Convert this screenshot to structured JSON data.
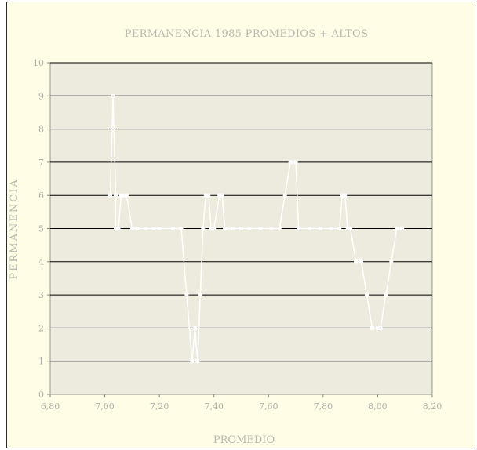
{
  "chart_data": {
    "type": "line",
    "title": "PERMANENCIA 1985 PROMEDIOS + ALTOS",
    "xlabel": "PROMEDIO",
    "ylabel": "PERMANENCIA",
    "xlim": [
      6.8,
      8.2
    ],
    "ylim": [
      0,
      10
    ],
    "x_ticks": [
      "6,80",
      "7,00",
      "7,20",
      "7,40",
      "7,60",
      "7,80",
      "8,00",
      "8,20"
    ],
    "y_ticks": [
      "0",
      "1",
      "2",
      "3",
      "4",
      "5",
      "6",
      "7",
      "8",
      "9",
      "10"
    ],
    "grid": "horizontal",
    "colors": {
      "frame_bg": "#fffde6",
      "plot_bg": "#ecebdd",
      "grid": "#000000",
      "line": "#ffffff",
      "text": "#b8b8b0"
    },
    "series": [
      {
        "points": [
          {
            "x": 7.02,
            "y": 6
          },
          {
            "x": 7.03,
            "y": 9
          },
          {
            "x": 7.04,
            "y": 6
          },
          {
            "x": 7.04,
            "y": 5
          },
          {
            "x": 7.05,
            "y": 5
          },
          {
            "x": 7.06,
            "y": 6
          },
          {
            "x": 7.07,
            "y": 6
          },
          {
            "x": 7.08,
            "y": 6
          },
          {
            "x": 7.1,
            "y": 5
          },
          {
            "x": 7.12,
            "y": 5
          },
          {
            "x": 7.15,
            "y": 5
          },
          {
            "x": 7.18,
            "y": 5
          },
          {
            "x": 7.2,
            "y": 5
          },
          {
            "x": 7.25,
            "y": 5
          },
          {
            "x": 7.28,
            "y": 5
          },
          {
            "x": 7.3,
            "y": 3
          },
          {
            "x": 7.32,
            "y": 1
          },
          {
            "x": 7.33,
            "y": 2
          },
          {
            "x": 7.34,
            "y": 1
          },
          {
            "x": 7.35,
            "y": 3
          },
          {
            "x": 7.36,
            "y": 5
          },
          {
            "x": 7.37,
            "y": 6
          },
          {
            "x": 7.38,
            "y": 6
          },
          {
            "x": 7.39,
            "y": 5
          },
          {
            "x": 7.4,
            "y": 5
          },
          {
            "x": 7.42,
            "y": 6
          },
          {
            "x": 7.43,
            "y": 6
          },
          {
            "x": 7.44,
            "y": 5
          },
          {
            "x": 7.47,
            "y": 5
          },
          {
            "x": 7.5,
            "y": 5
          },
          {
            "x": 7.53,
            "y": 5
          },
          {
            "x": 7.57,
            "y": 5
          },
          {
            "x": 7.61,
            "y": 5
          },
          {
            "x": 7.64,
            "y": 5
          },
          {
            "x": 7.66,
            "y": 6
          },
          {
            "x": 7.68,
            "y": 7
          },
          {
            "x": 7.7,
            "y": 7
          },
          {
            "x": 7.71,
            "y": 5
          },
          {
            "x": 7.75,
            "y": 5
          },
          {
            "x": 7.79,
            "y": 5
          },
          {
            "x": 7.83,
            "y": 5
          },
          {
            "x": 7.86,
            "y": 5
          },
          {
            "x": 7.87,
            "y": 6
          },
          {
            "x": 7.88,
            "y": 6
          },
          {
            "x": 7.89,
            "y": 5
          },
          {
            "x": 7.9,
            "y": 5
          },
          {
            "x": 7.92,
            "y": 4
          },
          {
            "x": 7.94,
            "y": 4
          },
          {
            "x": 7.96,
            "y": 3
          },
          {
            "x": 7.98,
            "y": 2
          },
          {
            "x": 8.0,
            "y": 2
          },
          {
            "x": 8.01,
            "y": 2
          },
          {
            "x": 8.03,
            "y": 3
          },
          {
            "x": 8.05,
            "y": 4
          },
          {
            "x": 8.07,
            "y": 5
          },
          {
            "x": 8.09,
            "y": 5
          }
        ]
      }
    ]
  }
}
